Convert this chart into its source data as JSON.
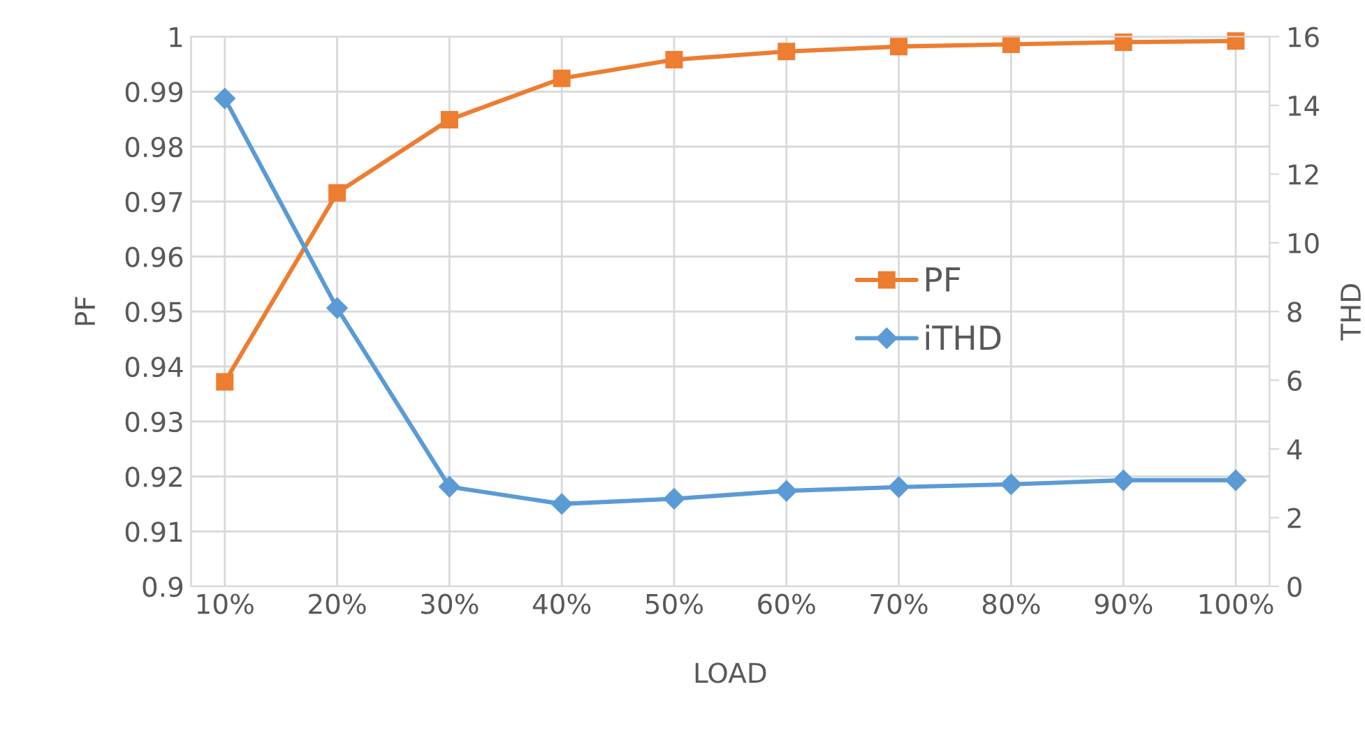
{
  "chart_data": {
    "type": "line",
    "xlabel": "LOAD",
    "ylabel": "PF",
    "y2label": "THD",
    "categories": [
      "10%",
      "20%",
      "30%",
      "40%",
      "50%",
      "60%",
      "70%",
      "80%",
      "90%",
      "100%"
    ],
    "series": [
      {
        "name": "PF",
        "color": "#ed7d31",
        "marker": "square",
        "values": [
          0.9372,
          0.9716,
          0.9849,
          0.9924,
          0.9958,
          0.9973,
          0.9982,
          0.9986,
          0.999,
          0.9992
        ]
      },
      {
        "name": "iTHD",
        "color": "#5b9bd5",
        "marker": "diamond",
        "axis": "y2",
        "values": [
          14.2,
          8.1,
          2.9,
          2.4,
          2.55,
          2.78,
          2.89,
          2.97,
          3.09,
          3.09
        ]
      }
    ],
    "ylim": [
      0.9,
      1
    ],
    "yticks": [
      {
        "value": 0.9,
        "label": "0.9"
      },
      0.91,
      0.92,
      0.93,
      0.94,
      0.95,
      0.96,
      0.97,
      0.98,
      0.99,
      {
        "value": 1,
        "label": "1"
      }
    ],
    "y2lim": [
      0,
      16
    ],
    "y2ticks": [
      0,
      2,
      4,
      6,
      8,
      10,
      12,
      14,
      16
    ],
    "grid": true,
    "legend": "right",
    "line_style": "solid"
  }
}
